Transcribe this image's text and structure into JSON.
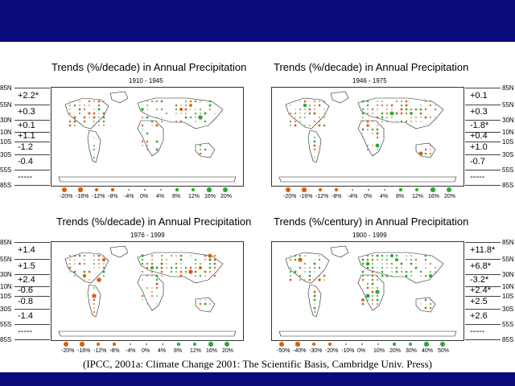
{
  "citation": "(IPCC, 2001a: Climate Change 2001: The Scientific Basis, Cambridge Univ. Press)",
  "colors": {
    "bar": "#0a0a7a",
    "decrease": "#d95f0e",
    "increase": "#31a832"
  },
  "lat_labels": [
    "85N",
    "55N",
    "30N",
    "10N",
    "10S",
    "30S",
    "55S",
    "85S"
  ],
  "panels": [
    {
      "title": "Trends (%/decade) in Annual Precipitation",
      "period": "1910 - 1945",
      "values": [
        "+2.2*",
        "+0.3",
        "+0.1",
        "+1.1",
        "-1.2",
        "-0.4",
        "-----"
      ],
      "legend": [
        "-20%",
        "-16%",
        "-12%",
        "-8%",
        "-4%",
        "0%",
        "4%",
        "8%",
        "12%",
        "16%",
        "20%"
      ]
    },
    {
      "title": "Trends (%/decade) in Annual Precipitation",
      "period": "1946 - 1975",
      "values": [
        "+0.1",
        "+0.3",
        "-1.8*",
        "+0.4",
        "+1.0",
        "-0.7",
        "-----"
      ],
      "legend": [
        "-20%",
        "-16%",
        "-12%",
        "-8%",
        "-4%",
        "0%",
        "4%",
        "8%",
        "12%",
        "16%",
        "20%"
      ]
    },
    {
      "title": "Trends (%/decade) in Annual Precipitation",
      "period": "1976 - 1999",
      "values": [
        "+1.4",
        "+1.5",
        "+2.4",
        "-0.6",
        "-0.8",
        "-1.4",
        "-----"
      ],
      "legend": [
        "-20%",
        "-16%",
        "-12%",
        "-8%",
        "-4%",
        "0%",
        "4%",
        "8%",
        "12%",
        "16%",
        "20%"
      ]
    },
    {
      "title": "Trends (%/century) in Annual Precipitation",
      "period": "1900 - 1999",
      "values": [
        "+11.8*",
        "+6.8*",
        "-3.2*",
        "+2.4*",
        "+2.5",
        "+2.6",
        "-----"
      ],
      "legend": [
        "-50%",
        "-40%",
        "-30%",
        "-20%",
        "-10%",
        "0%",
        "10%",
        "20%",
        "30%",
        "40%",
        "50%"
      ]
    }
  ]
}
